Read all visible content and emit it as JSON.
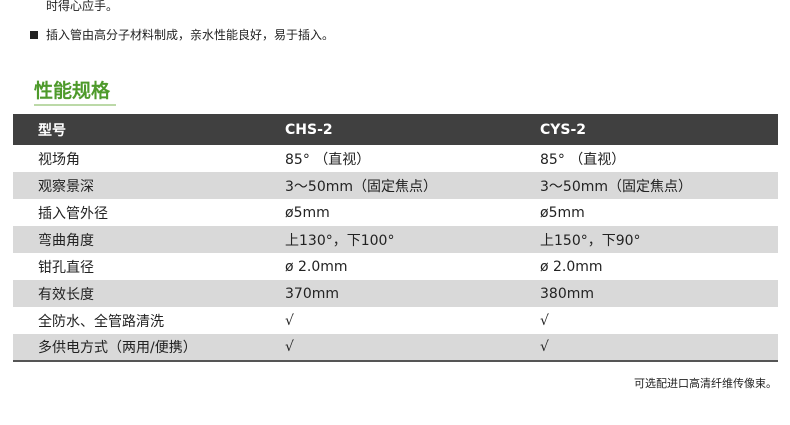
{
  "intro": {
    "line_tail": "时得心应手。",
    "bullet": "插入管由高分子材料制成，亲水性能良好，易于插入。"
  },
  "section_title": "性能规格",
  "table": {
    "headers": [
      "型号",
      "CHS-2",
      "CYS-2"
    ],
    "rows": [
      [
        "视场角",
        "85° （直视）",
        "85° （直视）"
      ],
      [
        "观察景深",
        "3～50mm（固定焦点）",
        "3～50mm（固定焦点）"
      ],
      [
        "插入管外径",
        "ø5mm",
        "ø5mm"
      ],
      [
        "弯曲角度",
        "上130°，下100°",
        "上150°，下90°"
      ],
      [
        "钳孔直径",
        "ø 2.0mm",
        "ø 2.0mm"
      ],
      [
        "有效长度",
        "370mm",
        "380mm"
      ],
      [
        "全防水、全管路清洗",
        "√",
        "√"
      ],
      [
        "多供电方式（两用/便携）",
        "√",
        "√"
      ]
    ]
  },
  "footnote": "可选配进口高清纤维传像束。"
}
